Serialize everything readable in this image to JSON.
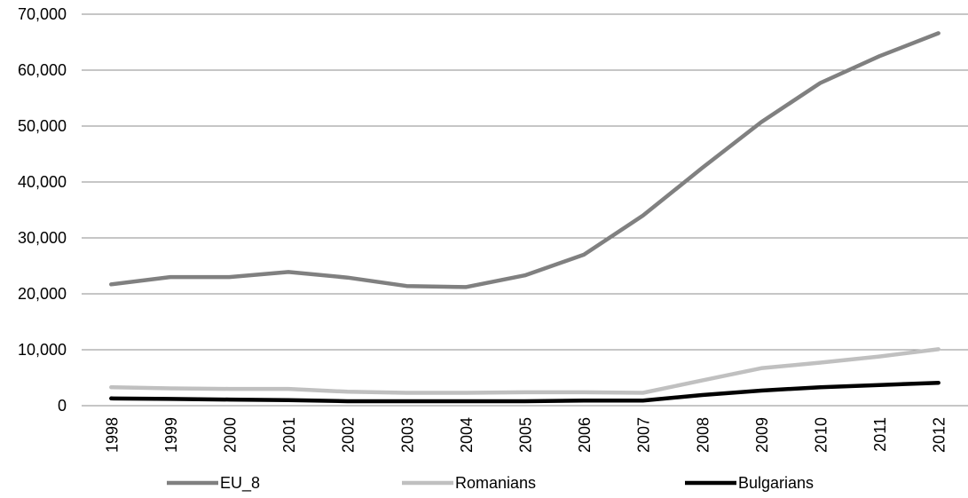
{
  "chart_data": {
    "type": "line",
    "title": "",
    "xlabel": "",
    "ylabel": "",
    "categories": [
      "1998",
      "1999",
      "2000",
      "2001",
      "2002",
      "2003",
      "2004",
      "2005",
      "2006",
      "2007",
      "2008",
      "2009",
      "2010",
      "2011",
      "2012"
    ],
    "y_ticks": [
      "0",
      "10,000",
      "20,000",
      "30,000",
      "40,000",
      "50,000",
      "60,000",
      "70,000"
    ],
    "ylim": [
      0,
      70000
    ],
    "grid": true,
    "legend_position": "bottom",
    "series": [
      {
        "name": "EU_8",
        "color": "#808080",
        "values": [
          21700,
          23000,
          23000,
          23900,
          22900,
          21400,
          21200,
          23300,
          27000,
          34000,
          42500,
          50700,
          57700,
          62500,
          66600
        ]
      },
      {
        "name": "Romanians",
        "color": "#c0c0c0",
        "values": [
          3300,
          3100,
          3000,
          3000,
          2500,
          2300,
          2300,
          2400,
          2400,
          2300,
          4500,
          6700,
          7700,
          8800,
          10100
        ]
      },
      {
        "name": "Bulgarians",
        "color": "#000000",
        "values": [
          1300,
          1200,
          1100,
          1000,
          800,
          800,
          800,
          800,
          900,
          900,
          1900,
          2700,
          3300,
          3700,
          4100
        ]
      }
    ]
  }
}
